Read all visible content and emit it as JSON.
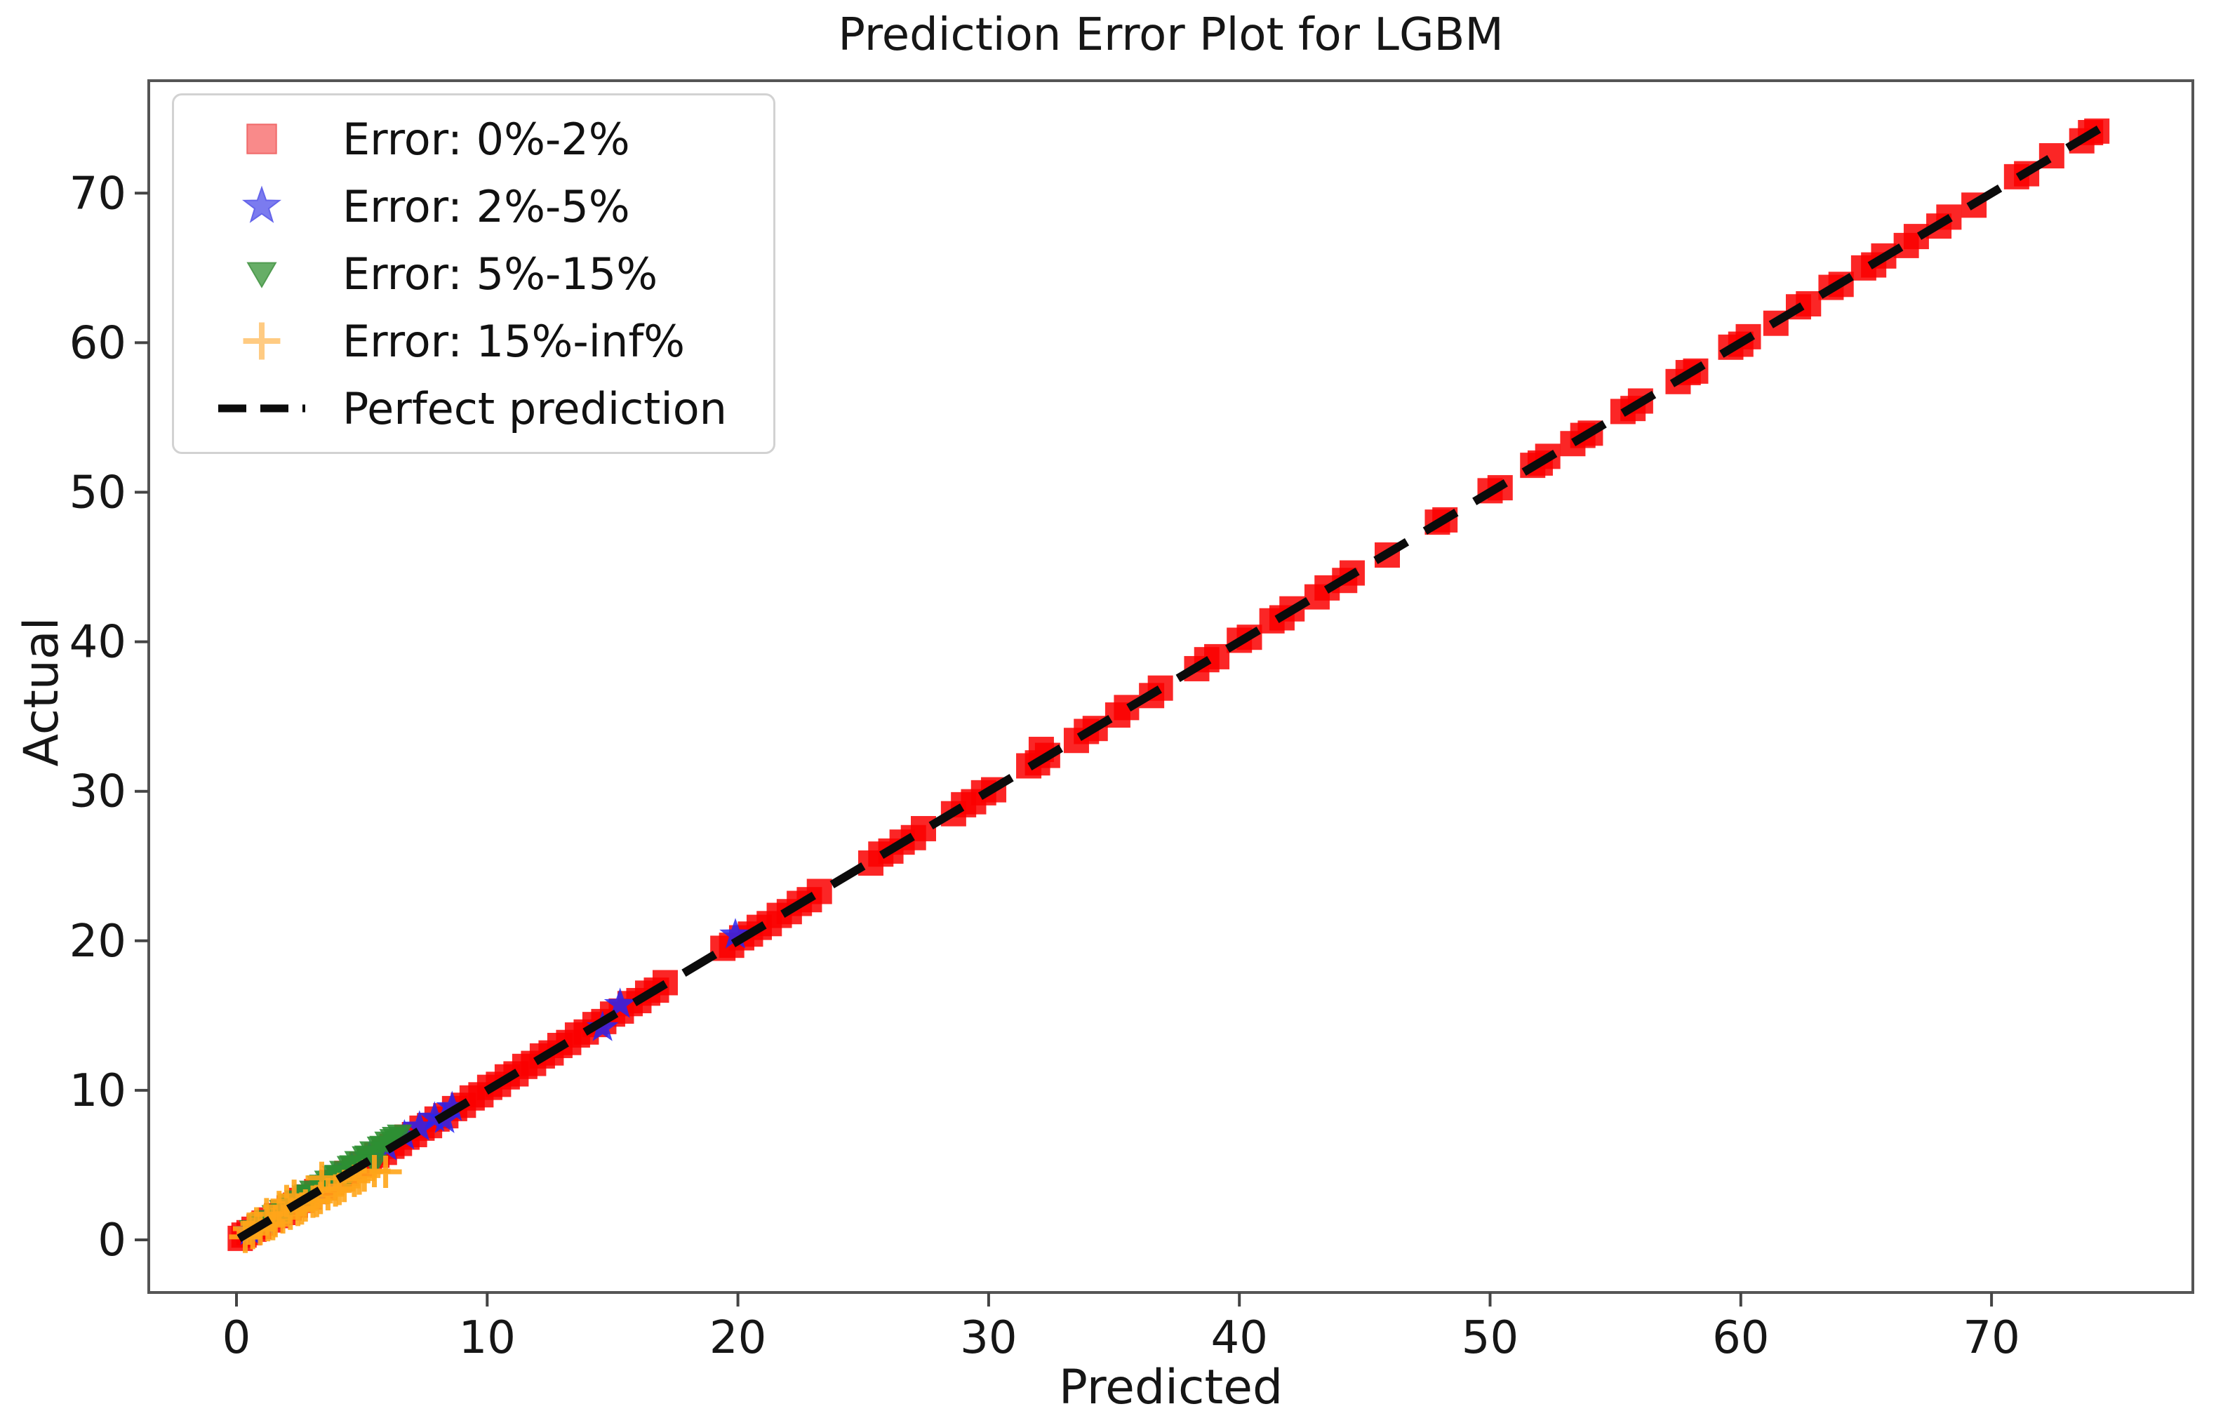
{
  "chart_data": {
    "type": "scatter",
    "title": "Prediction Error Plot for LGBM",
    "xlabel": "Predicted",
    "ylabel": "Actual",
    "x_ticks": [
      0,
      10,
      20,
      30,
      40,
      50,
      60,
      70
    ],
    "y_ticks": [
      0,
      10,
      20,
      30,
      40,
      50,
      60,
      70
    ],
    "xlim": [
      -3.5,
      78
    ],
    "ylim": [
      -3.5,
      77.5
    ],
    "grid": false,
    "perfect_line": {
      "label": "Perfect prediction",
      "color": "#0b0b0b",
      "x0": 0.1,
      "y0": 0.1,
      "x1": 74.4,
      "y1": 74.4,
      "style": "dashed"
    },
    "legend": {
      "position": "upper-left",
      "entries": [
        {
          "label": "Error: 0%-2%",
          "marker": "square",
          "fill": "#f98a8a",
          "stroke": "#f06a6a"
        },
        {
          "label": "Error: 2%-5%",
          "marker": "star",
          "fill": "#7b7bef",
          "stroke": "#6565ea"
        },
        {
          "label": "Error: 5%-15%",
          "marker": "triangle-down",
          "fill": "#67ae67",
          "stroke": "#519c51"
        },
        {
          "label": "Error: 15%-inf%",
          "marker": "plus",
          "fill": "none",
          "stroke": "#ffcb82"
        },
        {
          "label": "Perfect prediction",
          "marker": "dash",
          "fill": "none",
          "stroke": "#0b0b0b"
        }
      ]
    },
    "series": [
      {
        "name": "Error: 0%-2%",
        "marker": "square",
        "color": "#fa0000",
        "opacity": 0.85,
        "points": [
          [
            0.15,
            0.1
          ],
          [
            0.3,
            0.32
          ],
          [
            0.5,
            0.48
          ],
          [
            0.7,
            0.71
          ],
          [
            0.9,
            0.88
          ],
          [
            1.1,
            1.12
          ],
          [
            1.35,
            1.33
          ],
          [
            1.6,
            1.62
          ],
          [
            1.85,
            1.83
          ],
          [
            2.1,
            2.13
          ],
          [
            2.35,
            2.32
          ],
          [
            2.6,
            2.64
          ],
          [
            2.9,
            2.87
          ],
          [
            3.2,
            3.23
          ],
          [
            3.5,
            3.47
          ],
          [
            3.8,
            3.84
          ],
          [
            4.1,
            4.06
          ],
          [
            4.4,
            4.45
          ],
          [
            4.7,
            4.66
          ],
          [
            5.0,
            5.05
          ],
          [
            5.3,
            5.26
          ],
          [
            5.6,
            5.66
          ],
          [
            5.9,
            5.85
          ],
          [
            6.2,
            6.26
          ],
          [
            6.5,
            6.45
          ],
          [
            6.8,
            6.87
          ],
          [
            7.1,
            7.04
          ],
          [
            7.4,
            7.47
          ],
          [
            7.7,
            7.64
          ],
          [
            8.0,
            8.08
          ],
          [
            8.35,
            8.3
          ],
          [
            8.7,
            8.78
          ],
          [
            9.05,
            9.0
          ],
          [
            9.4,
            9.49
          ],
          [
            9.75,
            9.7
          ],
          [
            10.1,
            10.2
          ],
          [
            10.45,
            10.4
          ],
          [
            10.8,
            10.9
          ],
          [
            11.15,
            11.1
          ],
          [
            11.5,
            11.6
          ],
          [
            11.85,
            11.8
          ],
          [
            12.2,
            12.3
          ],
          [
            12.55,
            12.5
          ],
          [
            12.9,
            13.0
          ],
          [
            13.25,
            13.2
          ],
          [
            13.6,
            13.7
          ],
          [
            13.95,
            13.9
          ],
          [
            14.3,
            14.4
          ],
          [
            14.65,
            14.6
          ],
          [
            15.0,
            15.1
          ],
          [
            15.35,
            15.3
          ],
          [
            15.7,
            15.8
          ],
          [
            16.05,
            16.0
          ],
          [
            16.4,
            16.5
          ],
          [
            16.75,
            16.7
          ],
          [
            17.1,
            17.2
          ],
          [
            19.4,
            19.5
          ],
          [
            19.75,
            19.7
          ],
          [
            20.15,
            20.2
          ],
          [
            20.5,
            20.45
          ],
          [
            20.85,
            20.9
          ],
          [
            21.25,
            21.15
          ],
          [
            21.65,
            21.7
          ],
          [
            22.05,
            21.95
          ],
          [
            22.45,
            22.5
          ],
          [
            22.85,
            22.75
          ],
          [
            23.25,
            23.3
          ],
          [
            25.3,
            25.2
          ],
          [
            25.7,
            25.8
          ],
          [
            26.1,
            26.0
          ],
          [
            26.55,
            26.6
          ],
          [
            27.0,
            26.9
          ],
          [
            27.4,
            27.5
          ],
          [
            28.6,
            28.5
          ],
          [
            29.0,
            29.1
          ],
          [
            29.4,
            29.3
          ],
          [
            29.8,
            29.9
          ],
          [
            30.2,
            30.1
          ],
          [
            31.6,
            31.7
          ],
          [
            31.95,
            31.9
          ],
          [
            32.1,
            32.8
          ],
          [
            32.35,
            32.4
          ],
          [
            33.5,
            33.4
          ],
          [
            33.9,
            34.0
          ],
          [
            34.25,
            34.2
          ],
          [
            35.15,
            35.1
          ],
          [
            35.5,
            35.6
          ],
          [
            36.5,
            36.4
          ],
          [
            36.85,
            36.9
          ],
          [
            38.3,
            38.2
          ],
          [
            38.7,
            38.8
          ],
          [
            39.1,
            39.0
          ],
          [
            40.0,
            40.1
          ],
          [
            40.4,
            40.3
          ],
          [
            41.3,
            41.4
          ],
          [
            41.7,
            41.6
          ],
          [
            42.1,
            42.2
          ],
          [
            43.1,
            43.0
          ],
          [
            43.5,
            43.6
          ],
          [
            44.2,
            44.1
          ],
          [
            44.5,
            44.6
          ],
          [
            45.9,
            45.8
          ],
          [
            47.9,
            48.0
          ],
          [
            48.2,
            48.15
          ],
          [
            50.0,
            50.1
          ],
          [
            50.4,
            50.3
          ],
          [
            51.7,
            51.8
          ],
          [
            52.0,
            51.95
          ],
          [
            52.3,
            52.4
          ],
          [
            53.3,
            53.25
          ],
          [
            53.7,
            53.8
          ],
          [
            54.0,
            53.95
          ],
          [
            55.3,
            55.4
          ],
          [
            55.7,
            55.6
          ],
          [
            56.0,
            56.1
          ],
          [
            57.5,
            57.4
          ],
          [
            57.9,
            58.0
          ],
          [
            58.2,
            58.1
          ],
          [
            59.6,
            59.7
          ],
          [
            60.0,
            59.9
          ],
          [
            60.3,
            60.4
          ],
          [
            61.4,
            61.3
          ],
          [
            62.3,
            62.4
          ],
          [
            62.7,
            62.6
          ],
          [
            63.6,
            63.7
          ],
          [
            64.0,
            63.9
          ],
          [
            64.9,
            65.0
          ],
          [
            65.3,
            65.2
          ],
          [
            65.7,
            65.8
          ],
          [
            66.6,
            66.5
          ],
          [
            67.0,
            67.1
          ],
          [
            67.9,
            67.8
          ],
          [
            68.3,
            68.4
          ],
          [
            69.3,
            69.2
          ],
          [
            71.0,
            71.1
          ],
          [
            71.4,
            71.3
          ],
          [
            72.4,
            72.5
          ],
          [
            73.6,
            73.5
          ],
          [
            73.95,
            74.05
          ],
          [
            74.2,
            74.15
          ]
        ]
      },
      {
        "name": "Error: 2%-5%",
        "marker": "star",
        "color": "#2626f2",
        "opacity": 0.85,
        "points": [
          [
            0.55,
            0.57
          ],
          [
            1.15,
            1.19
          ],
          [
            1.75,
            1.82
          ],
          [
            2.45,
            2.55
          ],
          [
            3.15,
            3.27
          ],
          [
            3.9,
            4.05
          ],
          [
            4.6,
            4.78
          ],
          [
            5.3,
            5.5
          ],
          [
            6.0,
            6.22
          ],
          [
            6.7,
            6.95
          ],
          [
            7.3,
            7.55
          ],
          [
            7.9,
            8.15
          ],
          [
            8.3,
            8.05
          ],
          [
            8.6,
            8.85
          ],
          [
            14.6,
            14.2
          ],
          [
            15.3,
            15.75
          ],
          [
            19.9,
            20.4
          ]
        ]
      },
      {
        "name": "Error: 5%-15%",
        "marker": "triangle-down",
        "color": "#2d8f33",
        "opacity": 0.9,
        "points": [
          [
            0.6,
            0.66
          ],
          [
            0.9,
            1.0
          ],
          [
            1.2,
            1.33
          ],
          [
            1.5,
            1.66
          ],
          [
            1.8,
            2.0
          ],
          [
            2.1,
            2.32
          ],
          [
            2.4,
            2.65
          ],
          [
            2.7,
            2.98
          ],
          [
            3.0,
            3.3
          ],
          [
            3.3,
            3.64
          ],
          [
            3.6,
            3.97
          ],
          [
            3.9,
            4.3
          ],
          [
            4.2,
            4.62
          ],
          [
            4.5,
            4.95
          ],
          [
            4.8,
            5.28
          ],
          [
            5.1,
            5.6
          ],
          [
            5.4,
            5.93
          ],
          [
            5.7,
            6.25
          ],
          [
            6.0,
            6.58
          ],
          [
            6.3,
            6.9
          ],
          [
            1.0,
            1.09
          ],
          [
            1.6,
            1.75
          ],
          [
            2.2,
            2.4
          ],
          [
            2.8,
            3.05
          ],
          [
            3.4,
            3.7
          ],
          [
            4.0,
            4.36
          ],
          [
            4.6,
            5.0
          ],
          [
            5.2,
            5.65
          ],
          [
            5.8,
            6.3
          ],
          [
            2.0,
            1.84
          ],
          [
            3.0,
            2.76
          ],
          [
            4.4,
            4.05
          ],
          [
            5.5,
            5.05
          ],
          [
            6.2,
            6.75
          ],
          [
            6.5,
            7.05
          ]
        ]
      },
      {
        "name": "Error: 15%-inf%",
        "marker": "plus",
        "color": "#ffa519",
        "opacity": 0.9,
        "points": [
          [
            0.35,
            0.2
          ],
          [
            0.65,
            0.45
          ],
          [
            0.95,
            0.72
          ],
          [
            1.25,
            0.98
          ],
          [
            1.55,
            1.25
          ],
          [
            1.85,
            1.5
          ],
          [
            2.15,
            1.75
          ],
          [
            2.45,
            2.0
          ],
          [
            2.75,
            2.3
          ],
          [
            3.05,
            2.55
          ],
          [
            3.35,
            2.8
          ],
          [
            3.65,
            3.05
          ],
          [
            3.95,
            3.3
          ],
          [
            4.3,
            3.6
          ],
          [
            4.7,
            3.95
          ],
          [
            5.1,
            4.3
          ],
          [
            5.5,
            4.6
          ],
          [
            5.95,
            4.55
          ],
          [
            1.2,
            1.72
          ],
          [
            1.7,
            2.2
          ],
          [
            2.3,
            2.95
          ],
          [
            3.4,
            4.15
          ],
          [
            2.0,
            2.6
          ],
          [
            0.8,
            1.1
          ],
          [
            1.45,
            1.05
          ],
          [
            2.6,
            2.1
          ],
          [
            3.2,
            2.6
          ],
          [
            0.5,
            0.75
          ],
          [
            4.1,
            3.4
          ],
          [
            4.9,
            4.1
          ]
        ]
      }
    ]
  }
}
